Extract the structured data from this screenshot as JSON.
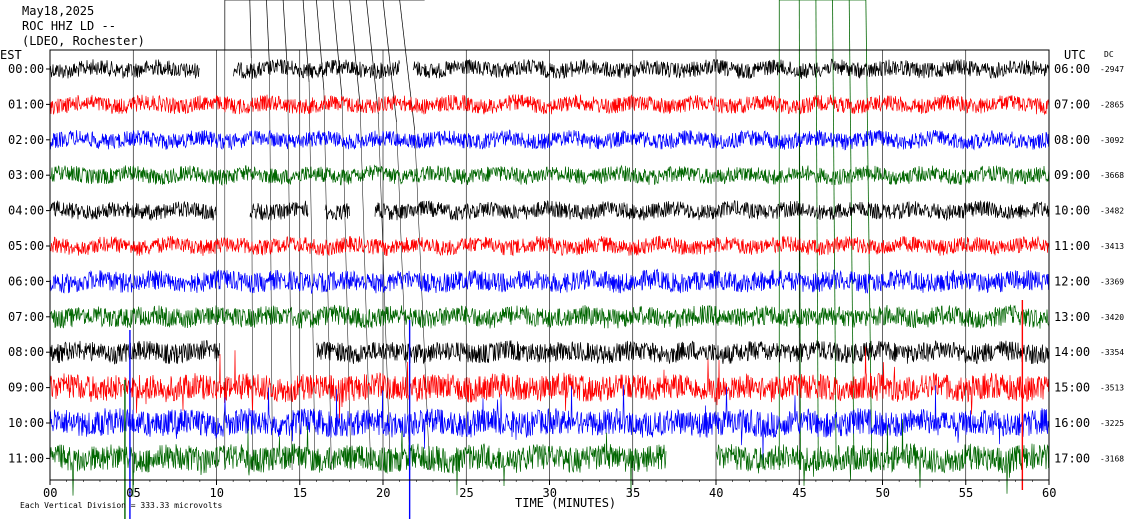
{
  "header": {
    "date": "May18,2025",
    "station": "ROC HHZ LD --",
    "network": "(LDEO, Rochester)"
  },
  "left_axis_label": "EST",
  "right_axis_label": "UTC",
  "dc_label": "DC",
  "footer_note": "Each Vertical Division = 333.33 microvolts",
  "colors": {
    "black": "#000000",
    "red": "#ff0000",
    "blue": "#0000ff",
    "green": "#006600"
  },
  "chart_data": {
    "type": "line",
    "xlabel": "TIME (MINUTES)",
    "xlim": [
      0,
      60
    ],
    "x_ticks": [
      "00",
      "05",
      "10",
      "15",
      "20",
      "25",
      "30",
      "35",
      "40",
      "45",
      "50",
      "55",
      "60"
    ],
    "rows": [
      {
        "est": "00:00",
        "utc": "06:00",
        "dc": "-2947",
        "color": "#000000",
        "gaps": [
          [
            9,
            11
          ],
          [
            21,
            21.8
          ]
        ]
      },
      {
        "est": "01:00",
        "utc": "07:00",
        "dc": "-2865",
        "color": "#ff0000",
        "gaps": []
      },
      {
        "est": "02:00",
        "utc": "08:00",
        "dc": "-3092",
        "color": "#0000ff",
        "gaps": []
      },
      {
        "est": "03:00",
        "utc": "09:00",
        "dc": "-3668",
        "color": "#006600",
        "gaps": []
      },
      {
        "est": "04:00",
        "utc": "10:00",
        "dc": "-3482",
        "color": "#000000",
        "gaps": [
          [
            10,
            12
          ],
          [
            15.5,
            16.5
          ],
          [
            18,
            19.5
          ]
        ]
      },
      {
        "est": "05:00",
        "utc": "11:00",
        "dc": "-3413",
        "color": "#ff0000",
        "gaps": []
      },
      {
        "est": "06:00",
        "utc": "12:00",
        "dc": "-3369",
        "color": "#0000ff",
        "gaps": []
      },
      {
        "est": "07:00",
        "utc": "13:00",
        "dc": "-3420",
        "color": "#006600",
        "gaps": []
      },
      {
        "est": "08:00",
        "utc": "14:00",
        "dc": "-3354",
        "color": "#000000",
        "gaps": [
          [
            10.2,
            16
          ]
        ]
      },
      {
        "est": "09:00",
        "utc": "15:00",
        "dc": "-3513",
        "color": "#ff0000",
        "gaps": []
      },
      {
        "est": "10:00",
        "utc": "16:00",
        "dc": "-3225",
        "color": "#0000ff",
        "gaps": []
      },
      {
        "est": "11:00",
        "utc": "17:00",
        "dc": "-3168",
        "color": "#006600",
        "gaps": [
          [
            37,
            40
          ]
        ]
      }
    ],
    "grid": true
  }
}
